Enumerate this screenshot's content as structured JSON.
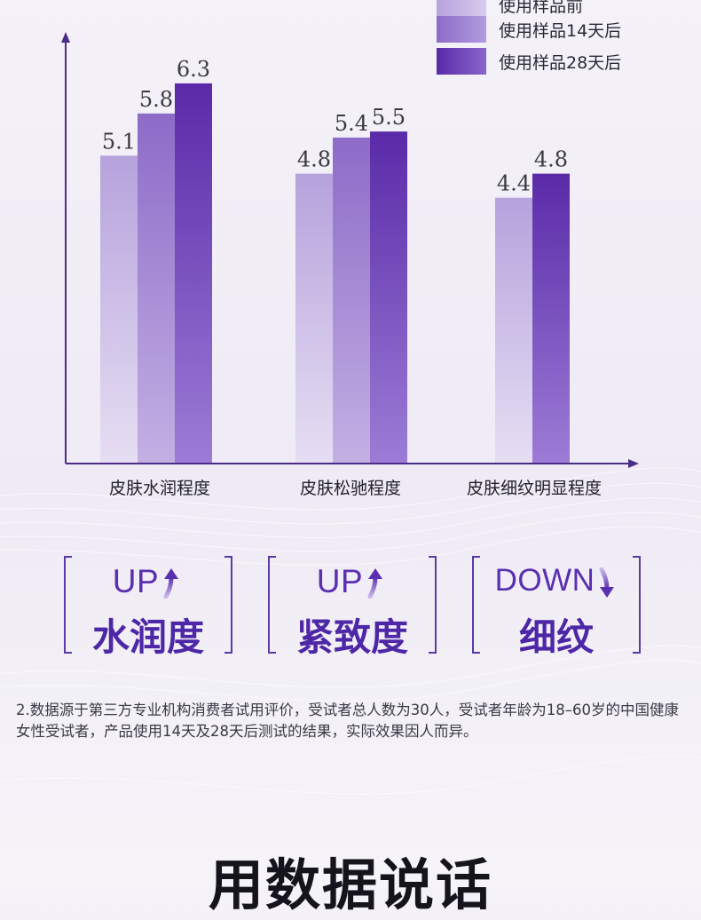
{
  "chart_data": {
    "type": "bar",
    "categories": [
      "皮肤水润程度",
      "皮肤松驰程度",
      "皮肤细纹明显程度"
    ],
    "series": [
      {
        "name": "使用样品前",
        "values": [
          5.1,
          4.8,
          4.4
        ]
      },
      {
        "name": "使用样品14天后",
        "values": [
          5.8,
          5.4,
          null
        ]
      },
      {
        "name": "使用样品28天后",
        "values": [
          6.3,
          5.5,
          4.8
        ]
      }
    ],
    "value_labels": {
      "before": [
        "5.1",
        "4.8",
        "4.4"
      ],
      "day14": [
        "5.8",
        "5.4",
        ""
      ],
      "day28": [
        "6.3",
        "5.5",
        "4.8"
      ]
    },
    "ylim": [
      0,
      6.8
    ],
    "legend_position": "top-right",
    "grid": false,
    "colors": {
      "before_top": "#b6a2dc",
      "before_bottom": "#e6def3",
      "day14_top": "#8d6bc8",
      "day14_bottom": "#c3b0e3",
      "day28_top": "#5a2aa8",
      "day28_bottom": "#9c7cd6",
      "axis": "#4b2c86"
    }
  },
  "legend": [
    {
      "label": "使用样品前"
    },
    {
      "label": "使用样品14天后"
    },
    {
      "label": "使用样品28天后"
    }
  ],
  "badges": [
    {
      "top": "UP",
      "bottom": "水润度",
      "arrow": "up-arrow-icon"
    },
    {
      "top": "UP",
      "bottom": "紧致度",
      "arrow": "up-arrow-icon"
    },
    {
      "top": "DOWN",
      "bottom": "细纹",
      "arrow": "down-arrow-icon"
    }
  ],
  "footnote": "2.数据源于第三方专业机构消费者试用评价，受试者总人数为30人，受试者年龄为18–60岁的中国健康女性受试者，产品使用14天及28天后测试的结果，实际效果因人而异。",
  "bottom_title": "用数据说话"
}
